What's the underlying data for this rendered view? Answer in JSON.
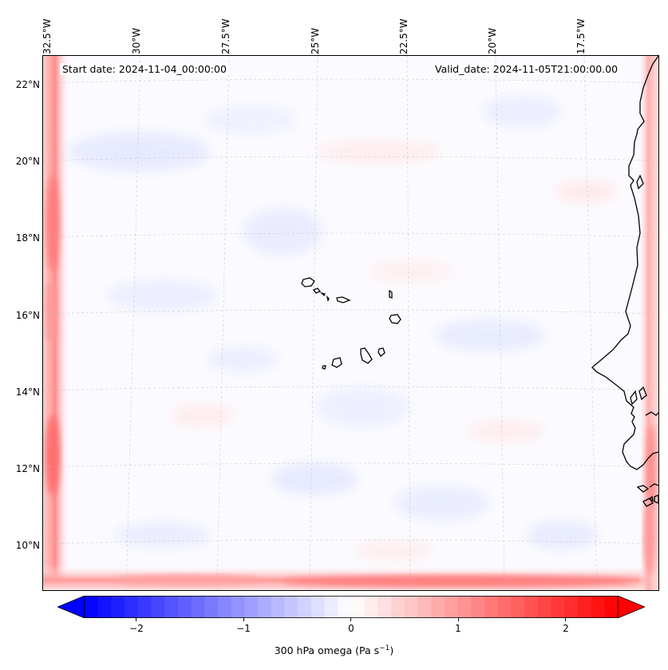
{
  "header": {
    "start_date": "Start date: 2024-11-04_00:00:00",
    "valid_date": "Valid_date: 2024-11-05T21:00:00.00"
  },
  "map": {
    "longitude_labels": [
      "32.5°W",
      "30°W",
      "27.5°W",
      "25°W",
      "22.5°W",
      "20°W",
      "17.5°W"
    ],
    "latitude_labels": [
      "22°N",
      "20°N",
      "18°N",
      "16°N",
      "14°N",
      "12°N",
      "10°N"
    ],
    "field": "300 hPa omega",
    "gridlines": true,
    "colors": {
      "positive": "#ff0000",
      "negative": "#0000ff",
      "neutral": "#ffffff",
      "coast": "#000000"
    }
  },
  "colorbar": {
    "label": "300 hPa omega (Pa s",
    "label_superscript": "−1",
    "label_close": ")",
    "ticks": [
      "−2",
      "−1",
      "0",
      "1",
      "2"
    ],
    "range": [
      -2.75,
      2.75
    ],
    "tick_values": [
      -2,
      -1,
      0,
      1,
      2
    ],
    "colormap": "bwr",
    "extend": "both"
  }
}
